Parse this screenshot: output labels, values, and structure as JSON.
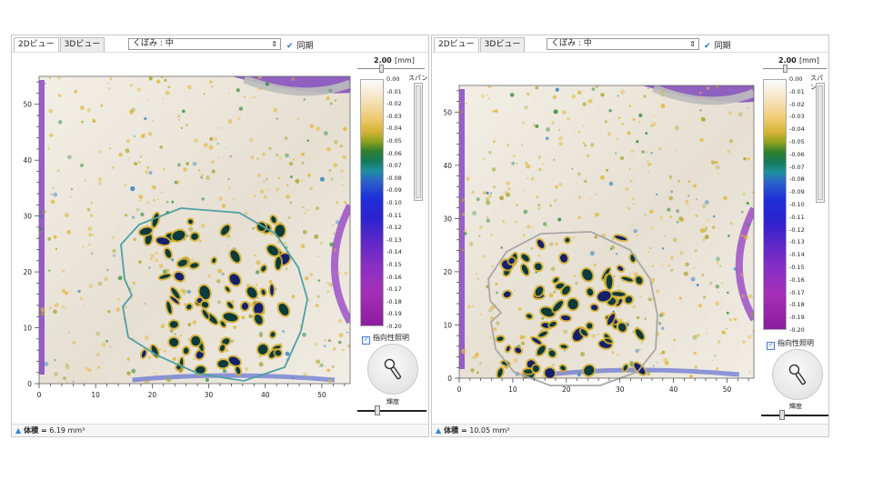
{
  "panels": [
    {
      "tabs": [
        {
          "label": "2Dビュー",
          "active": true
        },
        {
          "label": "3Dビュー",
          "active": false
        }
      ],
      "mode_select": "くぼみ : 中",
      "sync": {
        "checked": true,
        "label": "同期"
      },
      "span": {
        "value": "2.00",
        "unit": "[mm]",
        "label": "スパン"
      },
      "colorbar": {
        "labels": [
          "0.00",
          "-0.01",
          "-0.02",
          "-0.03",
          "-0.04",
          "-0.05",
          "-0.06",
          "-0.07",
          "-0.08",
          "-0.09",
          "-0.10",
          "-0.11",
          "-0.12",
          "-0.13",
          "-0.14",
          "-0.15",
          "-0.16",
          "-0.17",
          "-0.18",
          "-0.19",
          "-0.20"
        ]
      },
      "lighting": {
        "label": "指向性照明",
        "checked": true
      },
      "brightness": {
        "label": "輝度"
      },
      "axes": {
        "x_ticks": [
          "0",
          "10",
          "20",
          "30",
          "40",
          "50"
        ],
        "y_ticks": [
          "0",
          "10",
          "20",
          "30",
          "40",
          "50"
        ]
      },
      "footer": {
        "label": "体積 =",
        "value": "6.19 mm³"
      },
      "colors": {
        "outline": "#4fa0a6"
      }
    },
    {
      "tabs": [
        {
          "label": "2Dビュー",
          "active": true
        },
        {
          "label": "3Dビュー",
          "active": false
        }
      ],
      "mode_select": "くぼみ : 中",
      "sync": {
        "checked": true,
        "label": "同期"
      },
      "span": {
        "value": "2.00",
        "unit": "[mm]",
        "label": "スパン"
      },
      "colorbar": {
        "labels": [
          "0.00",
          "-0.01",
          "-0.02",
          "-0.03",
          "-0.04",
          "-0.05",
          "-0.06",
          "-0.07",
          "-0.08",
          "-0.09",
          "-0.10",
          "-0.11",
          "-0.12",
          "-0.13",
          "-0.14",
          "-0.15",
          "-0.16",
          "-0.17",
          "-0.18",
          "-0.19",
          "-0.20"
        ]
      },
      "lighting": {
        "label": "指向性照明",
        "checked": true
      },
      "brightness": {
        "label": "輝度"
      },
      "axes": {
        "x_ticks": [
          "0",
          "10",
          "20",
          "30",
          "40",
          "50"
        ],
        "y_ticks": [
          "0",
          "10",
          "20",
          "30",
          "40",
          "50"
        ]
      },
      "footer": {
        "label": "体積 =",
        "value": "10.05 mm³"
      },
      "colors": {
        "outline": "#a8a8a8"
      }
    }
  ]
}
